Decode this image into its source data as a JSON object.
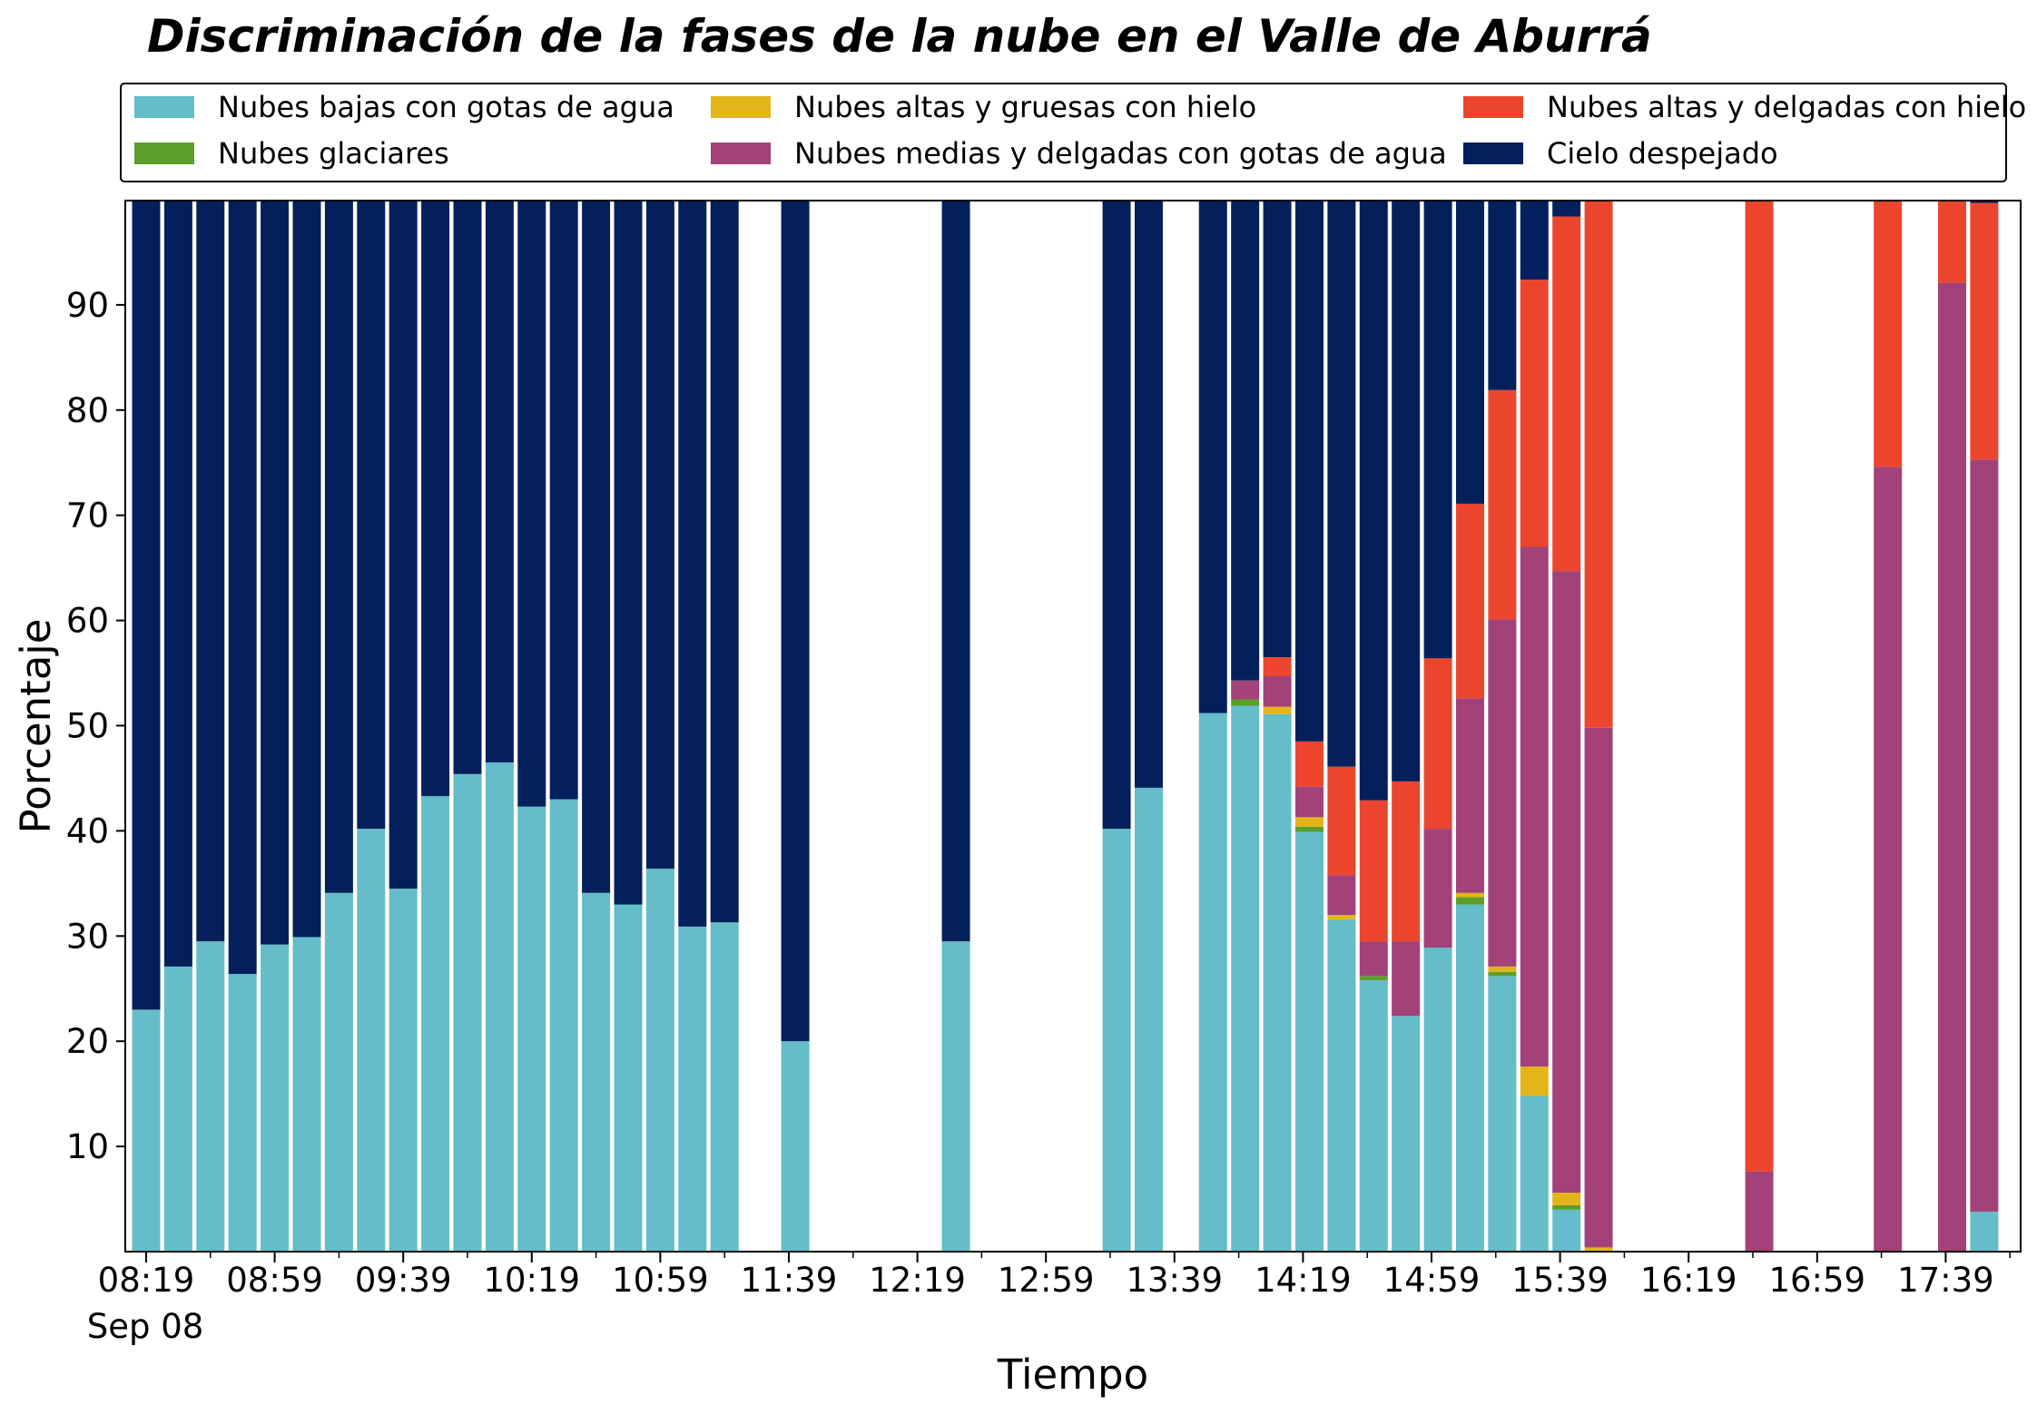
{
  "chart_data": {
    "type": "bar",
    "stacked": true,
    "title": "Discriminación de la fases de la nube en el Valle de Aburrá",
    "xlabel": "Tiempo",
    "ylabel": "Porcentaje",
    "ylim": [
      0,
      100
    ],
    "y_ticks": [
      10,
      20,
      30,
      40,
      50,
      60,
      70,
      80,
      90
    ],
    "x_tick_labels": [
      "08:19",
      "08:59",
      "09:39",
      "10:19",
      "10:59",
      "11:39",
      "12:19",
      "12:59",
      "13:39",
      "14:19",
      "14:59",
      "15:39",
      "16:19",
      "16:59",
      "17:39"
    ],
    "x_date_label": "Sep 08",
    "grid": false,
    "legend_position": "top",
    "series": [
      {
        "name": "Nubes bajas con gotas de agua",
        "color": "#64bdc9"
      },
      {
        "name": "Nubes glaciares",
        "color": "#5c9e2a"
      },
      {
        "name": "Nubes altas y gruesas con hielo",
        "color": "#e4b51a"
      },
      {
        "name": "Nubes medias y delgadas con gotas de agua",
        "color": "#a24278"
      },
      {
        "name": "Nubes altas y delgadas con hielo",
        "color": "#ec452e"
      },
      {
        "name": "Cielo despejado",
        "color": "#04205c"
      }
    ],
    "bar_columns": [
      "time",
      "Nubes bajas con gotas de agua",
      "Nubes glaciares",
      "Nubes altas y gruesas con hielo",
      "Nubes medias y delgadas con gotas de agua",
      "Nubes altas y delgadas con hielo",
      "Cielo despejado"
    ],
    "bars": [
      [
        "08:19",
        23,
        0,
        0,
        0,
        0,
        77
      ],
      [
        "08:29",
        27.1,
        0,
        0,
        0,
        0,
        72.9
      ],
      [
        "08:39",
        29.5,
        0,
        0,
        0,
        0,
        70.5
      ],
      [
        "08:49",
        26.4,
        0,
        0,
        0,
        0,
        73.6
      ],
      [
        "08:59",
        29.2,
        0,
        0,
        0,
        0,
        70.8
      ],
      [
        "09:09",
        29.9,
        0,
        0,
        0,
        0,
        70.1
      ],
      [
        "09:19",
        34.1,
        0,
        0,
        0,
        0,
        65.9
      ],
      [
        "09:29",
        40.2,
        0,
        0,
        0,
        0,
        59.8
      ],
      [
        "09:39",
        34.5,
        0,
        0,
        0,
        0,
        65.5
      ],
      [
        "09:49",
        43.3,
        0,
        0,
        0,
        0,
        56.7
      ],
      [
        "09:59",
        45.4,
        0,
        0,
        0,
        0,
        54.6
      ],
      [
        "10:09",
        46.5,
        0,
        0,
        0,
        0,
        53.5
      ],
      [
        "10:19",
        42.3,
        0,
        0,
        0,
        0,
        57.7
      ],
      [
        "10:29",
        43.0,
        0,
        0,
        0,
        0,
        57.0
      ],
      [
        "10:39",
        34.1,
        0,
        0,
        0,
        0,
        65.9
      ],
      [
        "10:49",
        33.0,
        0,
        0,
        0,
        0,
        67.0
      ],
      [
        "10:59",
        36.4,
        0,
        0,
        0,
        0,
        63.6
      ],
      [
        "11:09",
        30.9,
        0,
        0,
        0,
        0,
        69.1
      ],
      [
        "11:19",
        31.3,
        0,
        0,
        0,
        0,
        68.7
      ],
      [
        "11:41",
        20.0,
        0,
        0,
        0,
        0,
        80.0
      ],
      [
        "12:31",
        29.5,
        0,
        0,
        0,
        0,
        70.5
      ],
      [
        "13:21",
        40.2,
        0,
        0,
        0,
        0,
        59.8
      ],
      [
        "13:31",
        44.1,
        0,
        0,
        0,
        0,
        55.9
      ],
      [
        "13:51",
        51.2,
        0,
        0,
        0,
        0,
        48.8
      ],
      [
        "14:01",
        51.9,
        0.6,
        0,
        1.8,
        0,
        45.7
      ],
      [
        "14:11",
        51.1,
        0,
        0.7,
        2.9,
        1.8,
        43.5
      ],
      [
        "14:21",
        39.9,
        0.5,
        0.9,
        2.9,
        4.3,
        51.5
      ],
      [
        "14:31",
        31.6,
        0,
        0.4,
        3.8,
        10.3,
        53.9
      ],
      [
        "14:41",
        25.8,
        0.4,
        0,
        3.3,
        13.4,
        57.1
      ],
      [
        "14:51",
        22.4,
        0,
        0,
        7.1,
        15.2,
        55.3
      ],
      [
        "15:01",
        28.9,
        0,
        0,
        11.3,
        16.2,
        43.6
      ],
      [
        "15:11",
        33.0,
        0.7,
        0.4,
        18.5,
        18.5,
        28.9
      ],
      [
        "15:21",
        26.2,
        0.4,
        0.5,
        33.0,
        21.8,
        18.1
      ],
      [
        "15:31",
        14.8,
        0,
        2.8,
        49.4,
        25.4,
        7.6
      ],
      [
        "15:41",
        4.0,
        0.4,
        1.2,
        59.1,
        33.7,
        1.6
      ],
      [
        "15:51",
        0,
        0,
        0.4,
        49.4,
        50.2,
        0
      ],
      [
        "16:41",
        0,
        0,
        0,
        7.6,
        92.4,
        0
      ],
      [
        "17:21",
        0,
        0,
        0,
        74.6,
        25.4,
        0
      ],
      [
        "17:41",
        0,
        0,
        0,
        92.1,
        7.9,
        0
      ],
      [
        "17:51",
        3.8,
        0,
        0,
        71.5,
        24.4,
        0.3
      ]
    ]
  }
}
